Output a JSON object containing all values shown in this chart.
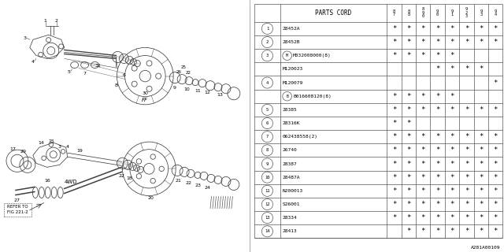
{
  "figure_code": "A281A00109",
  "bg_color": "#f0f0f0",
  "rows": [
    {
      "num": "1",
      "part": "28452A",
      "stars": [
        1,
        1,
        1,
        1,
        1,
        1,
        1,
        1
      ]
    },
    {
      "num": "2",
      "part": "28452B",
      "stars": [
        1,
        1,
        1,
        1,
        1,
        1,
        1,
        1
      ]
    },
    {
      "num": "3",
      "part": "M032008000(8)",
      "stars": [
        1,
        1,
        1,
        1,
        1,
        0,
        0,
        0
      ],
      "prefix": "M"
    },
    {
      "num": "",
      "part": "M120023",
      "stars": [
        0,
        0,
        0,
        1,
        1,
        1,
        1,
        0
      ],
      "prefix": ""
    },
    {
      "num": "4",
      "part": "M120079",
      "stars": [
        0,
        0,
        0,
        0,
        0,
        0,
        0,
        1
      ],
      "prefix": ""
    },
    {
      "num": "",
      "part": "B016608120(8)",
      "stars": [
        1,
        1,
        1,
        1,
        1,
        0,
        0,
        0
      ],
      "prefix": "B"
    },
    {
      "num": "5",
      "part": "28385",
      "stars": [
        1,
        1,
        1,
        1,
        1,
        1,
        1,
        1
      ],
      "prefix": ""
    },
    {
      "num": "6",
      "part": "28316K",
      "stars": [
        1,
        1,
        0,
        0,
        0,
        0,
        0,
        0
      ],
      "prefix": ""
    },
    {
      "num": "7",
      "part": "062438558(2)",
      "stars": [
        1,
        1,
        1,
        1,
        1,
        1,
        1,
        1
      ],
      "prefix": ""
    },
    {
      "num": "8",
      "part": "26740",
      "stars": [
        1,
        1,
        1,
        1,
        1,
        1,
        1,
        1
      ],
      "prefix": ""
    },
    {
      "num": "9",
      "part": "28387",
      "stars": [
        1,
        1,
        1,
        1,
        1,
        1,
        1,
        1
      ],
      "prefix": ""
    },
    {
      "num": "10",
      "part": "28487A",
      "stars": [
        1,
        1,
        1,
        1,
        1,
        1,
        1,
        1
      ],
      "prefix": ""
    },
    {
      "num": "11",
      "part": "N200013",
      "stars": [
        1,
        1,
        1,
        1,
        1,
        1,
        1,
        1
      ],
      "prefix": ""
    },
    {
      "num": "12",
      "part": "S26001",
      "stars": [
        1,
        1,
        1,
        1,
        1,
        1,
        1,
        1
      ],
      "prefix": ""
    },
    {
      "num": "13",
      "part": "28334",
      "stars": [
        1,
        1,
        1,
        1,
        1,
        1,
        1,
        1
      ],
      "prefix": ""
    },
    {
      "num": "14",
      "part": "28413",
      "stars": [
        0,
        1,
        1,
        1,
        1,
        1,
        1,
        1
      ],
      "prefix": ""
    }
  ],
  "col_headers": [
    "8\n7",
    "8\n8",
    "8\n9\n0",
    "9\n0",
    "9\n1",
    "9\n2\n3",
    "9\n3",
    "9\n4"
  ]
}
